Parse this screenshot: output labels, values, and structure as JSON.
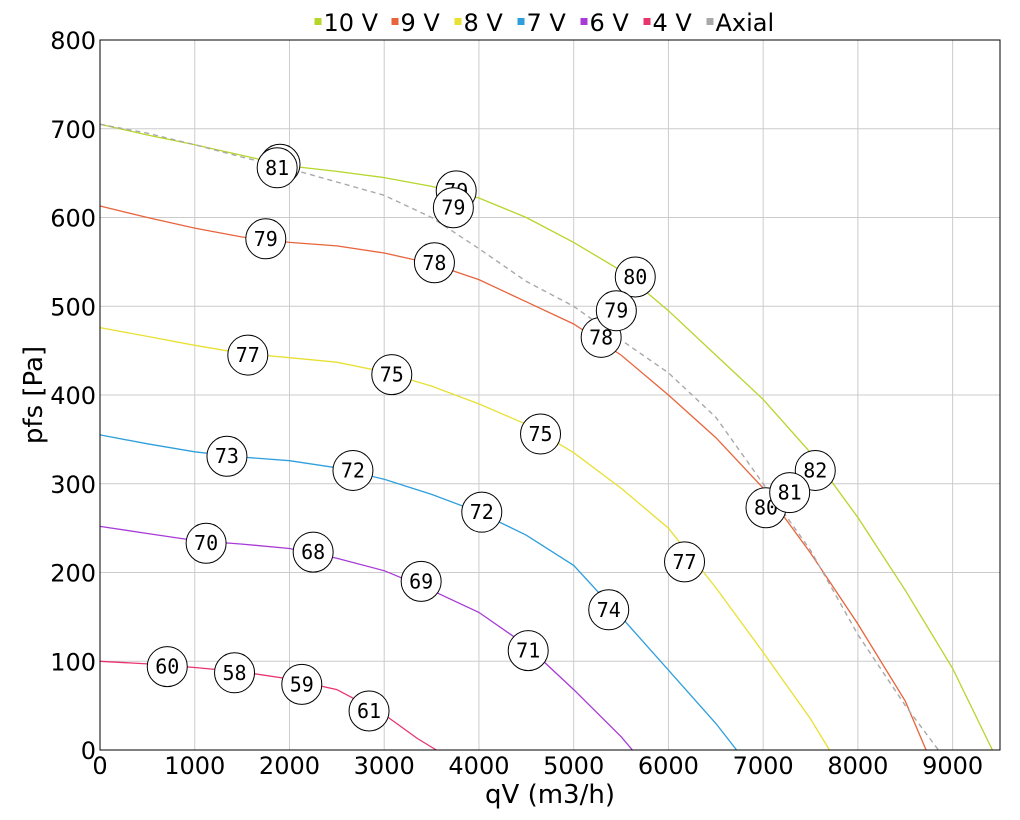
{
  "chart_data": {
    "type": "line",
    "xlabel": "qV (m3/h)",
    "ylabel": "pfs [Pa]",
    "xlim": [
      0,
      9500
    ],
    "ylim": [
      0,
      800
    ],
    "xticks": [
      0,
      1000,
      2000,
      3000,
      4000,
      5000,
      6000,
      7000,
      8000,
      9000
    ],
    "yticks": [
      0,
      100,
      200,
      300,
      400,
      500,
      600,
      700,
      800
    ],
    "grid": true,
    "legend_position": "top",
    "series": [
      {
        "name": "10 V",
        "color": "#b5d62a",
        "dashed": false,
        "points": [
          [
            0,
            705
          ],
          [
            500,
            693
          ],
          [
            1000,
            682
          ],
          [
            1500,
            670
          ],
          [
            2000,
            658
          ],
          [
            2500,
            652
          ],
          [
            3000,
            645
          ],
          [
            3500,
            635
          ],
          [
            4000,
            622
          ],
          [
            4500,
            600
          ],
          [
            5000,
            572
          ],
          [
            5500,
            540
          ],
          [
            6000,
            495
          ],
          [
            6500,
            445
          ],
          [
            7000,
            395
          ],
          [
            7500,
            335
          ],
          [
            8000,
            262
          ],
          [
            8500,
            180
          ],
          [
            9000,
            92
          ],
          [
            9420,
            0
          ]
        ],
        "labels": [
          {
            "x": 1900,
            "y": 660,
            "text": "81"
          },
          {
            "x": 3760,
            "y": 630,
            "text": "79"
          },
          {
            "x": 5650,
            "y": 533,
            "text": "80"
          },
          {
            "x": 7550,
            "y": 315,
            "text": "82"
          }
        ]
      },
      {
        "name": "9 V",
        "color": "#e8643c",
        "dashed": false,
        "points": [
          [
            0,
            613
          ],
          [
            500,
            600
          ],
          [
            1000,
            588
          ],
          [
            1500,
            578
          ],
          [
            2000,
            572
          ],
          [
            2500,
            568
          ],
          [
            3000,
            560
          ],
          [
            3500,
            548
          ],
          [
            4000,
            530
          ],
          [
            4500,
            505
          ],
          [
            5000,
            480
          ],
          [
            5500,
            445
          ],
          [
            6000,
            400
          ],
          [
            6500,
            352
          ],
          [
            7000,
            295
          ],
          [
            7500,
            222
          ],
          [
            8000,
            142
          ],
          [
            8500,
            55
          ],
          [
            8720,
            0
          ]
        ],
        "labels": [
          {
            "x": 1750,
            "y": 576,
            "text": "79"
          },
          {
            "x": 3530,
            "y": 549,
            "text": "78"
          },
          {
            "x": 5290,
            "y": 465,
            "text": "78"
          },
          {
            "x": 7030,
            "y": 273,
            "text": "80"
          }
        ]
      },
      {
        "name": "8 V",
        "color": "#e8e033",
        "dashed": false,
        "points": [
          [
            0,
            476
          ],
          [
            500,
            466
          ],
          [
            1000,
            456
          ],
          [
            1500,
            447
          ],
          [
            2000,
            442
          ],
          [
            2500,
            437
          ],
          [
            3000,
            426
          ],
          [
            3500,
            410
          ],
          [
            4000,
            390
          ],
          [
            4500,
            367
          ],
          [
            5000,
            335
          ],
          [
            5500,
            295
          ],
          [
            6000,
            250
          ],
          [
            6500,
            183
          ],
          [
            7000,
            110
          ],
          [
            7500,
            35
          ],
          [
            7700,
            0
          ]
        ],
        "labels": [
          {
            "x": 1560,
            "y": 445,
            "text": "77"
          },
          {
            "x": 3080,
            "y": 423,
            "text": "75"
          },
          {
            "x": 4650,
            "y": 356,
            "text": "75"
          },
          {
            "x": 6170,
            "y": 212,
            "text": "77"
          }
        ]
      },
      {
        "name": "7 V",
        "color": "#2e9fdc",
        "dashed": false,
        "points": [
          [
            0,
            355
          ],
          [
            500,
            345
          ],
          [
            1000,
            336
          ],
          [
            1500,
            330
          ],
          [
            2000,
            326
          ],
          [
            2500,
            318
          ],
          [
            3000,
            305
          ],
          [
            3500,
            288
          ],
          [
            4000,
            268
          ],
          [
            4500,
            242
          ],
          [
            5000,
            208
          ],
          [
            5500,
            150
          ],
          [
            6000,
            90
          ],
          [
            6500,
            30
          ],
          [
            6720,
            0
          ]
        ],
        "labels": [
          {
            "x": 1340,
            "y": 331,
            "text": "73"
          },
          {
            "x": 2670,
            "y": 315,
            "text": "72"
          },
          {
            "x": 4030,
            "y": 268,
            "text": "72"
          },
          {
            "x": 5370,
            "y": 158,
            "text": "74"
          }
        ]
      },
      {
        "name": "6 V",
        "color": "#a83ad6",
        "dashed": false,
        "points": [
          [
            0,
            252
          ],
          [
            500,
            244
          ],
          [
            1000,
            236
          ],
          [
            1500,
            232
          ],
          [
            2000,
            227
          ],
          [
            2500,
            216
          ],
          [
            3000,
            202
          ],
          [
            3500,
            180
          ],
          [
            4000,
            155
          ],
          [
            4500,
            118
          ],
          [
            5000,
            68
          ],
          [
            5500,
            15
          ],
          [
            5620,
            0
          ]
        ],
        "labels": [
          {
            "x": 1120,
            "y": 233,
            "text": "70"
          },
          {
            "x": 2250,
            "y": 223,
            "text": "68"
          },
          {
            "x": 3390,
            "y": 190,
            "text": "69"
          },
          {
            "x": 4520,
            "y": 112,
            "text": "71"
          }
        ]
      },
      {
        "name": "4 V",
        "color": "#e8336d",
        "dashed": false,
        "points": [
          [
            0,
            100
          ],
          [
            500,
            97
          ],
          [
            1000,
            93
          ],
          [
            1500,
            88
          ],
          [
            2000,
            80
          ],
          [
            2500,
            68
          ],
          [
            3000,
            40
          ],
          [
            3350,
            13
          ],
          [
            3550,
            0
          ]
        ],
        "labels": [
          {
            "x": 710,
            "y": 94,
            "text": "60"
          },
          {
            "x": 1420,
            "y": 87,
            "text": "58"
          },
          {
            "x": 2130,
            "y": 74,
            "text": "59"
          },
          {
            "x": 2840,
            "y": 44,
            "text": "61"
          }
        ]
      },
      {
        "name": "Axial",
        "color": "#a9a9a9",
        "dashed": true,
        "points": [
          [
            0,
            705
          ],
          [
            500,
            695
          ],
          [
            1000,
            682
          ],
          [
            1500,
            668
          ],
          [
            2000,
            655
          ],
          [
            2500,
            640
          ],
          [
            3000,
            625
          ],
          [
            3500,
            600
          ],
          [
            4000,
            565
          ],
          [
            4500,
            528
          ],
          [
            5000,
            500
          ],
          [
            5500,
            462
          ],
          [
            6000,
            425
          ],
          [
            6500,
            375
          ],
          [
            7000,
            300
          ],
          [
            7500,
            225
          ],
          [
            8000,
            130
          ],
          [
            8500,
            50
          ],
          [
            8850,
            0
          ]
        ],
        "labels": [
          {
            "x": 1870,
            "y": 656,
            "text": "81"
          },
          {
            "x": 3730,
            "y": 611,
            "text": "79"
          },
          {
            "x": 5450,
            "y": 495,
            "text": "79"
          },
          {
            "x": 7280,
            "y": 290,
            "text": "81"
          }
        ]
      }
    ]
  }
}
